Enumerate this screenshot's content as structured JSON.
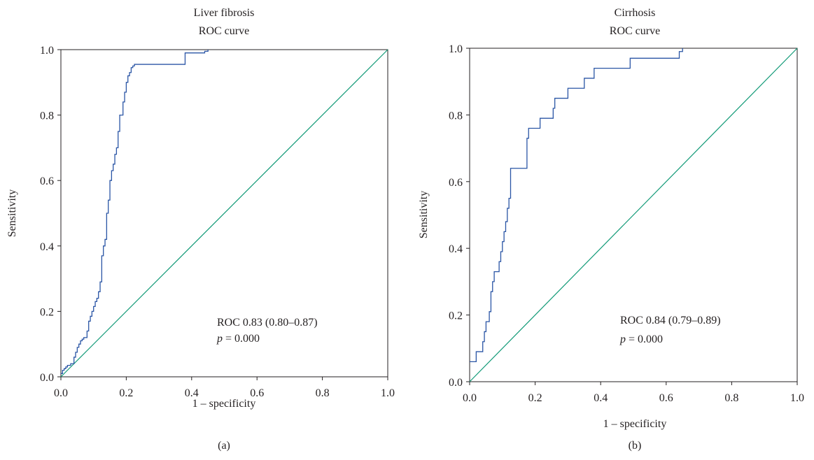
{
  "colors": {
    "roc_curve": "#2a55a5",
    "reference_line": "#119a77",
    "axis": "#231f20",
    "text": "#231f20"
  },
  "chart_data": [
    {
      "type": "line",
      "title": "Liver fibrosis",
      "subtitle": "ROC curve",
      "xlabel": "1 – specificity",
      "ylabel": "Sensitivity",
      "xlim": [
        0,
        1
      ],
      "ylim": [
        0,
        1
      ],
      "xticks": [
        "0.0",
        "0.2",
        "0.4",
        "0.6",
        "0.8",
        "1.0"
      ],
      "yticks": [
        "0.0",
        "0.2",
        "0.4",
        "0.6",
        "0.8",
        "1.0"
      ],
      "grid": false,
      "panel_label": "(a)",
      "annotation_roc": "ROC 0.83 (0.80–0.87)",
      "annotation_p_symbol": "p",
      "annotation_p_value": " = 0.000",
      "series": [
        {
          "step": true,
          "x": [
            0.0,
            0.005,
            0.01,
            0.015,
            0.02,
            0.03,
            0.04,
            0.045,
            0.05,
            0.055,
            0.06,
            0.065,
            0.07,
            0.08,
            0.085,
            0.09,
            0.095,
            0.1,
            0.105,
            0.11,
            0.115,
            0.12,
            0.125,
            0.13,
            0.135,
            0.14,
            0.145,
            0.15,
            0.155,
            0.16,
            0.165,
            0.17,
            0.175,
            0.18,
            0.19,
            0.195,
            0.2,
            0.205,
            0.21,
            0.215,
            0.22,
            0.225,
            0.23,
            0.235,
            0.24,
            0.25,
            0.26,
            0.27,
            0.38,
            0.44,
            0.45
          ],
          "y": [
            0.01,
            0.02,
            0.025,
            0.03,
            0.035,
            0.04,
            0.06,
            0.075,
            0.09,
            0.1,
            0.11,
            0.115,
            0.12,
            0.14,
            0.17,
            0.185,
            0.2,
            0.215,
            0.23,
            0.24,
            0.26,
            0.29,
            0.37,
            0.4,
            0.42,
            0.5,
            0.54,
            0.6,
            0.63,
            0.65,
            0.68,
            0.7,
            0.75,
            0.8,
            0.84,
            0.87,
            0.9,
            0.92,
            0.93,
            0.945,
            0.95,
            0.955,
            0.955,
            0.955,
            0.955,
            0.955,
            0.955,
            0.955,
            0.99,
            0.995,
            1.0
          ]
        },
        {
          "name": "",
          "x": [
            0,
            1
          ],
          "y": [
            0,
            1
          ]
        }
      ]
    },
    {
      "type": "line",
      "title": "Cirrhosis",
      "subtitle": "ROC curve",
      "xlabel": "1 – specificity",
      "ylabel": "Sensitivity",
      "xlim": [
        0,
        1
      ],
      "ylim": [
        0,
        1
      ],
      "xticks": [
        "0.0",
        "0.2",
        "0.4",
        "0.6",
        "0.8",
        "1.0"
      ],
      "yticks": [
        "0.0",
        "0.2",
        "0.4",
        "0.6",
        "0.8",
        "1.0"
      ],
      "grid": false,
      "panel_label": "(b)",
      "annotation_roc": "ROC 0.84 (0.79–0.89)",
      "annotation_p_symbol": "p",
      "annotation_p_value": " = 0.000",
      "series": [
        {
          "step": true,
          "x": [
            0.0,
            0.02,
            0.04,
            0.045,
            0.05,
            0.06,
            0.065,
            0.07,
            0.075,
            0.08,
            0.09,
            0.095,
            0.1,
            0.105,
            0.11,
            0.115,
            0.12,
            0.125,
            0.13,
            0.175,
            0.18,
            0.185,
            0.215,
            0.225,
            0.25,
            0.255,
            0.26,
            0.29,
            0.3,
            0.35,
            0.37,
            0.38,
            0.49,
            0.5,
            0.63,
            0.64,
            0.65
          ],
          "y": [
            0.06,
            0.09,
            0.12,
            0.15,
            0.18,
            0.21,
            0.27,
            0.3,
            0.33,
            0.33,
            0.36,
            0.39,
            0.42,
            0.45,
            0.48,
            0.52,
            0.55,
            0.64,
            0.64,
            0.73,
            0.76,
            0.76,
            0.79,
            0.79,
            0.79,
            0.82,
            0.85,
            0.85,
            0.88,
            0.91,
            0.91,
            0.94,
            0.97,
            0.97,
            0.97,
            0.99,
            1.0
          ]
        },
        {
          "name": "",
          "x": [
            0,
            1
          ],
          "y": [
            0,
            1
          ]
        }
      ]
    }
  ]
}
